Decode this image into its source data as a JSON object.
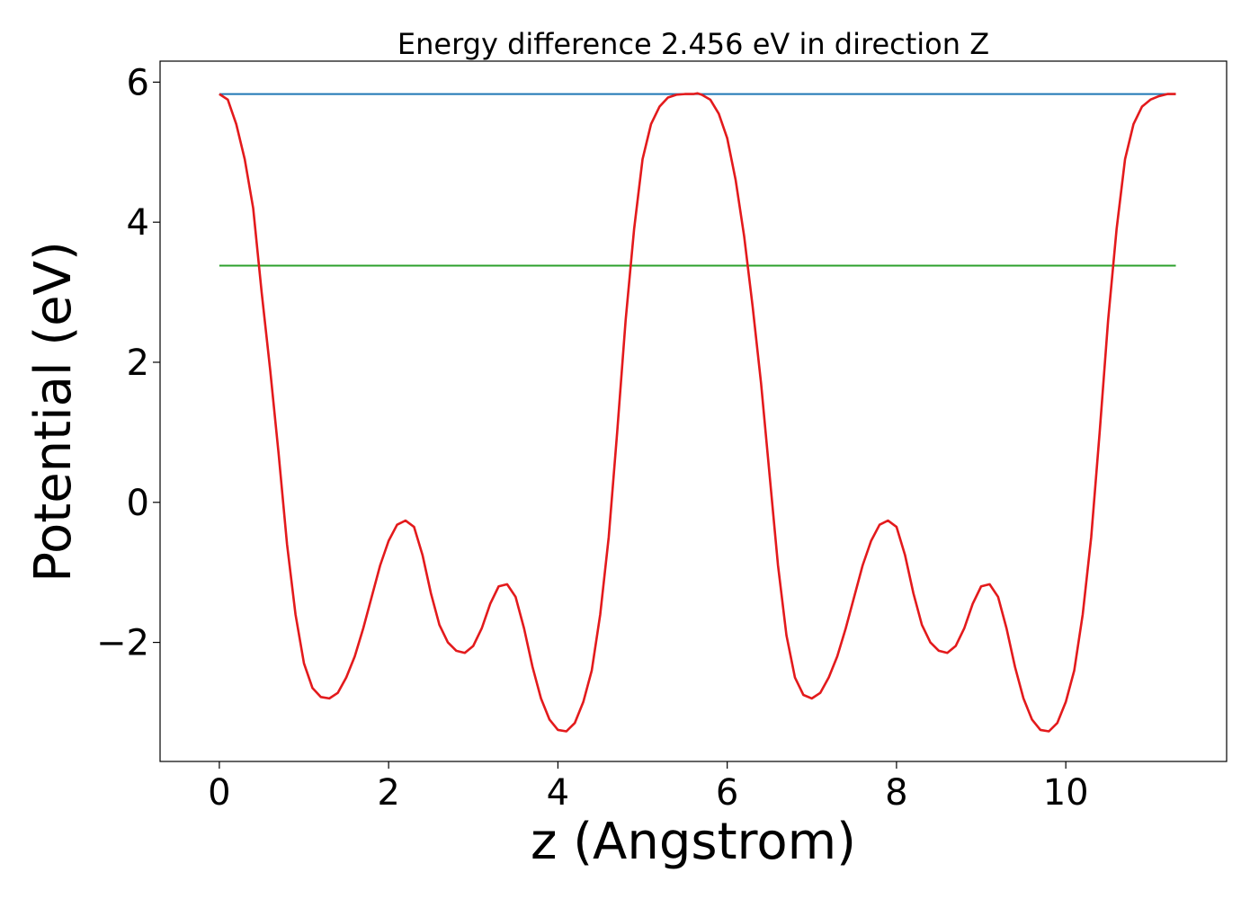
{
  "chart_data": {
    "type": "line",
    "title": "Energy difference 2.456 eV in direction Z",
    "xlabel": "z (Angstrom)",
    "ylabel": "Potential (eV)",
    "xlim": [
      -0.7,
      11.9
    ],
    "ylim": [
      -3.7,
      6.3
    ],
    "grid": false,
    "x_ticks": [
      0,
      2,
      4,
      6,
      8,
      10
    ],
    "x_tick_labels": [
      "0",
      "2",
      "4",
      "6",
      "8",
      "10"
    ],
    "y_ticks": [
      -2,
      0,
      2,
      4,
      6
    ],
    "y_tick_labels": [
      "−2",
      "0",
      "2",
      "4",
      "6"
    ],
    "series": [
      {
        "color": "#1f77b4",
        "x": [
          0,
          11.3
        ],
        "y": [
          5.83,
          5.83
        ]
      },
      {
        "color": "#2ca02c",
        "x": [
          0,
          11.3
        ],
        "y": [
          3.38,
          3.38
        ]
      },
      {
        "color": "#e31a1c",
        "x": [
          0.0,
          0.1,
          0.2,
          0.3,
          0.4,
          0.5,
          0.6,
          0.7,
          0.8,
          0.9,
          1.0,
          1.1,
          1.2,
          1.3,
          1.4,
          1.5,
          1.6,
          1.7,
          1.8,
          1.9,
          2.0,
          2.1,
          2.2,
          2.3,
          2.4,
          2.5,
          2.6,
          2.7,
          2.8,
          2.9,
          3.0,
          3.1,
          3.2,
          3.3,
          3.4,
          3.5,
          3.6,
          3.7,
          3.8,
          3.9,
          4.0,
          4.1,
          4.2,
          4.3,
          4.4,
          4.5,
          4.6,
          4.7,
          4.8,
          4.9,
          5.0,
          5.1,
          5.2,
          5.3,
          5.4,
          5.5,
          5.6,
          5.65,
          5.7,
          5.8,
          5.9,
          6.0,
          6.1,
          6.2,
          6.3,
          6.4,
          6.5,
          6.6,
          6.7,
          6.8,
          6.9,
          7.0,
          7.1,
          7.2,
          7.3,
          7.4,
          7.5,
          7.6,
          7.7,
          7.8,
          7.9,
          8.0,
          8.1,
          8.2,
          8.3,
          8.4,
          8.5,
          8.6,
          8.7,
          8.8,
          8.9,
          9.0,
          9.1,
          9.2,
          9.3,
          9.4,
          9.5,
          9.6,
          9.7,
          9.8,
          9.9,
          10.0,
          10.1,
          10.2,
          10.3,
          10.4,
          10.5,
          10.6,
          10.7,
          10.8,
          10.9,
          11.0,
          11.1,
          11.2,
          11.3
        ],
        "y": [
          5.83,
          5.75,
          5.4,
          4.9,
          4.2,
          3.0,
          1.9,
          0.7,
          -0.6,
          -1.6,
          -2.3,
          -2.65,
          -2.78,
          -2.8,
          -2.72,
          -2.5,
          -2.2,
          -1.8,
          -1.35,
          -0.9,
          -0.55,
          -0.32,
          -0.26,
          -0.35,
          -0.75,
          -1.3,
          -1.75,
          -2.0,
          -2.12,
          -2.15,
          -2.05,
          -1.8,
          -1.45,
          -1.2,
          -1.17,
          -1.35,
          -1.8,
          -2.35,
          -2.8,
          -3.1,
          -3.25,
          -3.27,
          -3.15,
          -2.85,
          -2.4,
          -1.6,
          -0.5,
          1.0,
          2.6,
          3.9,
          4.9,
          5.4,
          5.65,
          5.78,
          5.82,
          5.83,
          5.83,
          5.84,
          5.82,
          5.75,
          5.55,
          5.2,
          4.6,
          3.8,
          2.8,
          1.7,
          0.4,
          -0.9,
          -1.9,
          -2.5,
          -2.75,
          -2.8,
          -2.72,
          -2.5,
          -2.2,
          -1.8,
          -1.35,
          -0.9,
          -0.55,
          -0.32,
          -0.26,
          -0.35,
          -0.75,
          -1.3,
          -1.75,
          -2.0,
          -2.12,
          -2.15,
          -2.05,
          -1.8,
          -1.45,
          -1.2,
          -1.17,
          -1.35,
          -1.8,
          -2.35,
          -2.8,
          -3.1,
          -3.25,
          -3.27,
          -3.15,
          -2.85,
          -2.4,
          -1.6,
          -0.5,
          1.0,
          2.6,
          3.9,
          4.9,
          5.4,
          5.65,
          5.75,
          5.8,
          5.83,
          5.83
        ]
      }
    ]
  }
}
